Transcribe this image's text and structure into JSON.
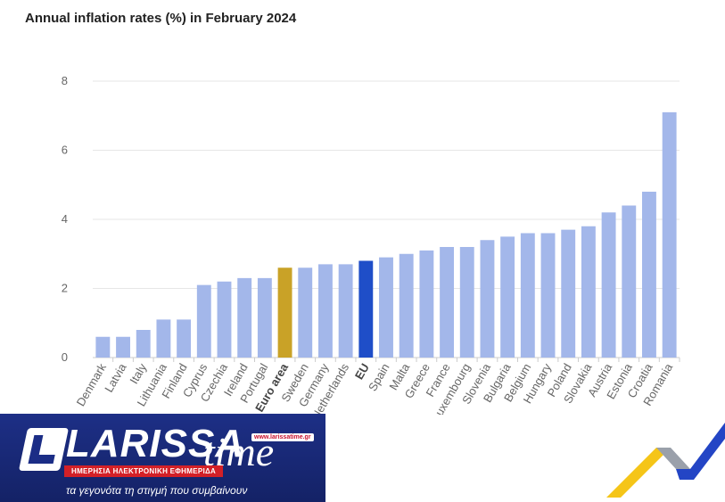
{
  "chart_data": {
    "type": "bar",
    "title": "Annual inflation rates (%) in February 2024",
    "xlabel": "",
    "ylabel": "",
    "ylim": [
      0,
      8
    ],
    "yticks": [
      "0",
      "2",
      "4",
      "6",
      "8"
    ],
    "grid": true,
    "categories": [
      "Denmark",
      "Latvia",
      "Italy",
      "Lithuania",
      "Finland",
      "Cyprus",
      "Czechia",
      "Ireland",
      "Portugal",
      "Euro area",
      "Sweden",
      "Germany",
      "Netherlands",
      "EU",
      "Spain",
      "Malta",
      "Greece",
      "France",
      "Luxembourg",
      "Slovenia",
      "Bulgaria",
      "Belgium",
      "Hungary",
      "Poland",
      "Slovakia",
      "Austria",
      "Estonia",
      "Croatia",
      "Romania"
    ],
    "values": [
      0.6,
      0.6,
      0.8,
      1.1,
      1.1,
      2.1,
      2.2,
      2.3,
      2.3,
      2.6,
      2.6,
      2.7,
      2.7,
      2.8,
      2.9,
      3.0,
      3.1,
      3.2,
      3.2,
      3.4,
      3.5,
      3.6,
      3.6,
      3.7,
      3.8,
      4.2,
      4.4,
      4.8,
      7.1
    ],
    "colors": {
      "default": "#a3b7ea",
      "Euro area": "#c9a227",
      "EU": "#1f4ec8"
    },
    "bold_categories": [
      "Euro area",
      "EU"
    ]
  },
  "banner": {
    "name": "LARISSA",
    "time_word": "time",
    "url": "www.larissatime.gr",
    "subtitle": "ΗΜΕΡΗΣΙΑ ΗΛΕΚΤΡΟΝΙΚΗ ΕΦΗΜΕΡΙΔΑ",
    "slogan": "τα γεγονότα τη στιγμή που συμβαίνουν",
    "background": "#1d2f86",
    "accent": "#d32027"
  },
  "corner_logo": {
    "icon": "chevron-logo-icon",
    "colors": [
      "#f5c518",
      "#2345c5",
      "#9aa0aa"
    ]
  }
}
